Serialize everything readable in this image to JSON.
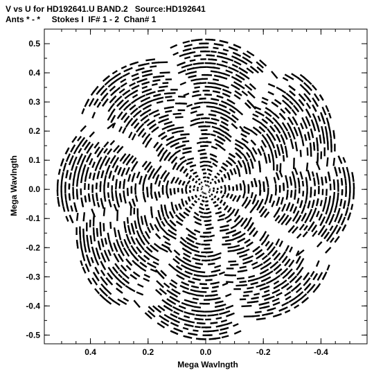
{
  "header": {
    "line1": "V vs U for HD192641.U BAND.2   Source:HD192641",
    "line2": "Ants * - *     Stokes I  IF# 1 - 2  Chan# 1"
  },
  "chart_data": {
    "type": "scatter",
    "title": "V vs U for HD192641.U BAND.2   Source:HD192641",
    "subtitle": "Ants * - *     Stokes I  IF# 1 - 2  Chan# 1",
    "xlabel": "Mega Wavlngth",
    "ylabel": "Mega Wavlngth",
    "xlim": [
      0.56,
      -0.56
    ],
    "ylim": [
      -0.53,
      0.55
    ],
    "x_reversed": true,
    "x_ticks": [
      0.4,
      0.2,
      0.0,
      -0.2,
      -0.4
    ],
    "x_tick_labels": [
      "0.4",
      "0.2",
      "0.0",
      "-0.2",
      "-0.4"
    ],
    "y_ticks": [
      0.5,
      0.4,
      0.3,
      0.2,
      0.1,
      0.0,
      -0.1,
      -0.2,
      -0.3,
      -0.4,
      -0.5
    ],
    "y_tick_labels": [
      "0.5",
      "0.4",
      "0.3",
      "0.2",
      "0.1",
      "0.0",
      "-0.1",
      "-0.2",
      "-0.3",
      "-0.4",
      "-0.5"
    ],
    "grid": false,
    "color": "#000000",
    "marker": "short dashes",
    "description_of_data": "uv-coverage: elliptical track arcs centered on origin with 8-fold rotational symmetry, tracks from radius ~0.01 to ~0.52 Mλ",
    "symmetry_order": 8,
    "max_radius": 0.52,
    "ellipse_axis_ratio": 0.72
  }
}
